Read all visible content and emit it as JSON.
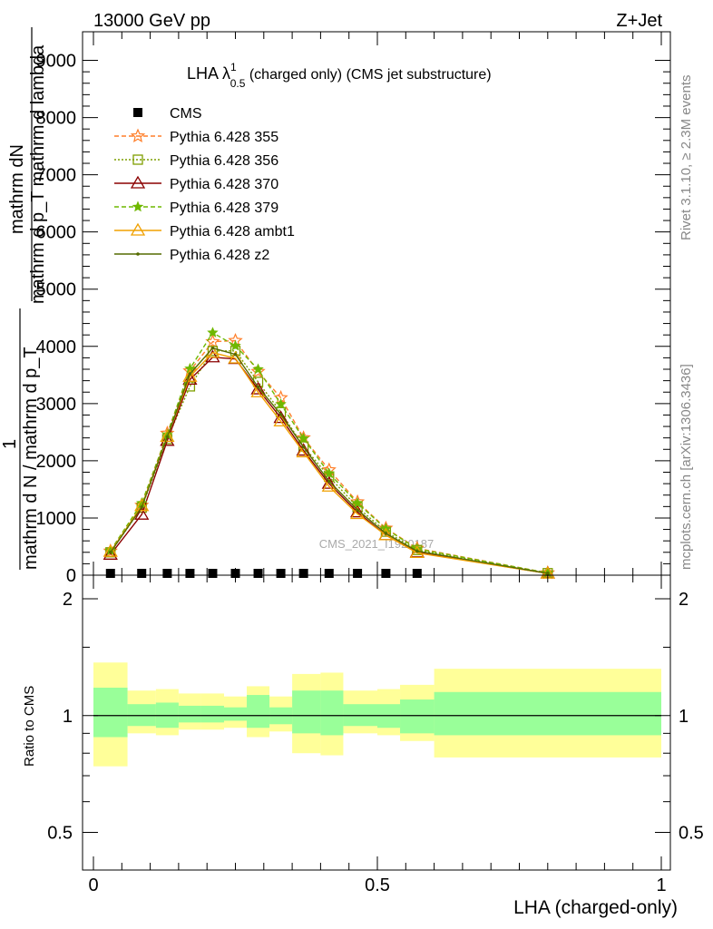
{
  "header": {
    "left": "13000 GeV pp",
    "right": "Z+Jet"
  },
  "side_labels": {
    "rivet": "Rivet 3.1.10, ≥ 2.3M events",
    "mcplots": "mcplots.cern.ch [arXiv:1306.3436]"
  },
  "watermark": "CMS_2021_I1920187",
  "colors": {
    "cms": "#000000",
    "p355": "#ff7f2a",
    "p356": "#7f9f00",
    "p370": "#8b0000",
    "p379": "#6fb800",
    "ambt1": "#f0a000",
    "z2": "#556b00",
    "band_outer": "#ffff99",
    "band_inner": "#99ff99",
    "ref_line": "#000000"
  },
  "chart_data": [
    {
      "type": "line",
      "title": "LHA λ¹₀.₅ (charged only) (CMS jet substructure)",
      "title_main": "LHA λ",
      "title_sup": "1",
      "title_sub": "0.5",
      "title_rest": " (charged only) (CMS jet substructure)",
      "ylabel_top": "mathrm dN",
      "ylabel_top2": "mathrm d p_T mathrm d lambda",
      "ylabel_one": "1",
      "ylabel_bottom": "mathrm d N / mathrm d p_T",
      "xlim": [
        0,
        1
      ],
      "ylim": [
        0,
        9500
      ],
      "yticks": [
        0,
        1000,
        2000,
        3000,
        4000,
        5000,
        6000,
        7000,
        8000,
        9000
      ],
      "ytick_labels": [
        "0",
        "1000",
        "2000",
        "3000",
        "4000",
        "5000",
        "6000",
        "7000",
        "8000",
        "9000"
      ],
      "x": [
        0.03,
        0.085,
        0.13,
        0.17,
        0.21,
        0.25,
        0.29,
        0.33,
        0.37,
        0.415,
        0.465,
        0.515,
        0.57,
        0.8
      ],
      "series": [
        {
          "name": "CMS",
          "values": [
            30,
            30,
            30,
            30,
            30,
            30,
            30,
            30,
            30,
            30,
            30,
            30,
            30,
            null
          ]
        },
        {
          "name": "Pythia 6.428 355",
          "values": [
            420,
            1220,
            2480,
            3570,
            4080,
            4100,
            3560,
            3100,
            2400,
            1840,
            1280,
            820,
            470,
            40
          ]
        },
        {
          "name": "Pythia 6.428 356",
          "values": [
            400,
            1180,
            2380,
            3300,
            3920,
            3920,
            3380,
            2850,
            2250,
            1720,
            1190,
            760,
            440,
            36
          ]
        },
        {
          "name": "Pythia 6.428 370",
          "values": [
            360,
            1060,
            2350,
            3420,
            3810,
            3780,
            3250,
            2750,
            2180,
            1600,
            1100,
            700,
            400,
            32
          ]
        },
        {
          "name": "Pythia 6.428 379",
          "values": [
            430,
            1260,
            2460,
            3610,
            4240,
            4010,
            3600,
            2990,
            2390,
            1780,
            1260,
            810,
            460,
            40
          ]
        },
        {
          "name": "Pythia 6.428 ambt1",
          "values": [
            410,
            1210,
            2420,
            3470,
            3890,
            3790,
            3200,
            2690,
            2150,
            1550,
            1070,
            700,
            390,
            30
          ]
        },
        {
          "name": "Pythia 6.428 z2",
          "values": [
            400,
            1190,
            2420,
            3520,
            3970,
            3860,
            3290,
            2810,
            2240,
            1640,
            1140,
            730,
            420,
            34
          ]
        }
      ]
    },
    {
      "type": "area",
      "ylabel": "Ratio to CMS",
      "xlabel": "LHA (charged-only)",
      "xlim": [
        0,
        1
      ],
      "ylim": [
        0.4,
        2.3
      ],
      "scale": "log",
      "yticks": [
        0.5,
        1,
        2
      ],
      "ytick_labels": [
        "0.5",
        "1",
        "2"
      ],
      "xticks": [
        0,
        0.5,
        1
      ],
      "xtick_labels": [
        "0",
        "0.5",
        "1"
      ],
      "bins": [
        0,
        0.06,
        0.11,
        0.15,
        0.19,
        0.23,
        0.27,
        0.31,
        0.35,
        0.4,
        0.44,
        0.5,
        0.54,
        0.6,
        1
      ],
      "inner_band": [
        [
          0.88,
          1.18
        ],
        [
          0.94,
          1.07
        ],
        [
          0.93,
          1.08
        ],
        [
          0.96,
          1.06
        ],
        [
          0.96,
          1.06
        ],
        [
          0.97,
          1.05
        ],
        [
          0.93,
          1.13
        ],
        [
          0.95,
          1.05
        ],
        [
          0.9,
          1.16
        ],
        [
          0.89,
          1.16
        ],
        [
          0.94,
          1.07
        ],
        [
          0.93,
          1.07
        ],
        [
          0.9,
          1.1
        ],
        [
          0.89,
          1.15
        ]
      ],
      "outer_band": [
        [
          0.74,
          1.37
        ],
        [
          0.9,
          1.16
        ],
        [
          0.89,
          1.17
        ],
        [
          0.92,
          1.14
        ],
        [
          0.92,
          1.14
        ],
        [
          0.93,
          1.12
        ],
        [
          0.88,
          1.19
        ],
        [
          0.91,
          1.12
        ],
        [
          0.8,
          1.28
        ],
        [
          0.79,
          1.29
        ],
        [
          0.9,
          1.16
        ],
        [
          0.89,
          1.17
        ],
        [
          0.86,
          1.2
        ],
        [
          0.78,
          1.32
        ]
      ],
      "reference": 1
    }
  ]
}
